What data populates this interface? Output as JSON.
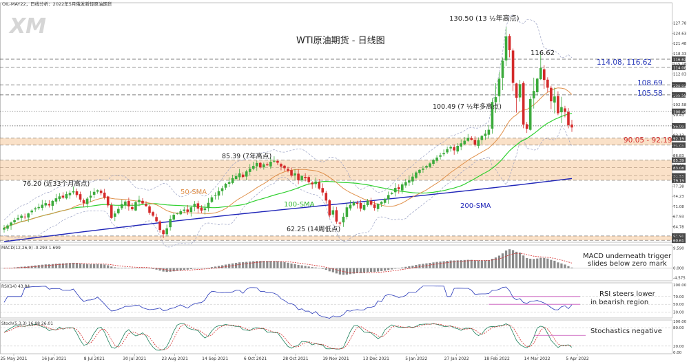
{
  "header": {
    "symbol_line": "OIL-MAY22，日线分析：2022年5月俄发新轻原油期货",
    "logo_text": "XM"
  },
  "chart_data": {
    "type": "candlestick",
    "title": "WTI原油期货 - 日线图",
    "x_axis": {
      "tick_labels": [
        "25 May 2021",
        "16 Jun 2021",
        "8 Jul 2021",
        "30 Jul 2021",
        "23 Aug 2021",
        "14 Sep 2021",
        "6 Oct 2021",
        "28 Oct 2021",
        "19 Nov 2021",
        "13 Dec 2021",
        "5 Jan 2022",
        "27 Jan 2022",
        "18 Feb 2022",
        "14 Mar 2022",
        "5 Apr 2022"
      ]
    },
    "price_axis": {
      "ylim": [
        60.0,
        134.08
      ],
      "ticks": [
        "134.08",
        "127.78",
        "124.63",
        "121.48",
        "118.33",
        "115.18",
        "112.03",
        "108.88",
        "105.73",
        "102.58",
        "99.43",
        "96.28",
        "93.13",
        "89.98",
        "86.83",
        "83.68",
        "80.53",
        "77.38",
        "74.23",
        "71.08",
        "67.93",
        "64.78",
        "61.63"
      ]
    },
    "closes": [
      64.5,
      65.2,
      66.1,
      66.8,
      67.5,
      68.2,
      67.9,
      68.9,
      69.8,
      70.5,
      70.9,
      71.6,
      72.1,
      71.4,
      72.8,
      73.6,
      74.2,
      73.8,
      74.9,
      75.3,
      75.8,
      74.6,
      73.2,
      72.1,
      73.5,
      74.4,
      75.6,
      76.1,
      75.2,
      73.8,
      71.4,
      67.5,
      68.9,
      70.3,
      71.8,
      72.6,
      71.1,
      70.2,
      72.4,
      73.1,
      72.0,
      71.2,
      69.1,
      68.2,
      66.5,
      63.8,
      62.5,
      64.3,
      67.2,
      68.5,
      68.9,
      69.6,
      70.1,
      69.4,
      70.8,
      71.9,
      70.4,
      69.8,
      70.5,
      72.2,
      73.9,
      74.5,
      75.8,
      76.7,
      78.1,
      78.6,
      79.8,
      80.5,
      81.3,
      80.2,
      81.9,
      82.8,
      83.6,
      84.5,
      83.2,
      84.1,
      83.8,
      84.9,
      85.2,
      84.6,
      83.4,
      82.9,
      82.1,
      80.6,
      81.3,
      79.2,
      80.5,
      79.8,
      78.6,
      77.9,
      78.8,
      76.6,
      75.4,
      72.9,
      68.3,
      69.9,
      66.4,
      65.8,
      67.9,
      70.8,
      71.6,
      72.3,
      71.9,
      70.4,
      71.5,
      72.8,
      71.6,
      70.6,
      71.9,
      72.5,
      73.4,
      74.6,
      75.2,
      76.8,
      76.4,
      77.9,
      78.6,
      79.1,
      80.3,
      81.6,
      82.4,
      82.8,
      83.6,
      84.4,
      85.5,
      86.2,
      86.9,
      87.6,
      88.8,
      89.5,
      88.4,
      89.8,
      90.6,
      91.4,
      92.3,
      91.7,
      90.2,
      91.6,
      92.9,
      93.6,
      94.8,
      103.4,
      104.9,
      110.6,
      116.2,
      123.7,
      119.4,
      109.3,
      104.7,
      108.9,
      96.4,
      95.1,
      104.3,
      106.8,
      110.6,
      113.9,
      110.2,
      107.8,
      103.6,
      105.1,
      99.9,
      101.8,
      100.3,
      96.2,
      95.5
    ],
    "sma_50_label": "50-SMA",
    "sma_100_label": "100-SMA",
    "sma_200_label": "200-SMA",
    "series_colors": {
      "candle_up": "#3cab3c",
      "candle_down": "#d42a2a",
      "sma50": "#e0904a",
      "sma100": "#2fd02f",
      "sma200": "#1f25b8",
      "bollinger": "#9aa1c4"
    },
    "horizontal_levels": [
      {
        "value": 116.62,
        "label": "116.62",
        "style": "dashed"
      },
      {
        "value": 114.08,
        "label": "114.08",
        "style": "dashed"
      },
      {
        "value": 108.69,
        "label": "108.69",
        "style": "dashed"
      },
      {
        "value": 105.58,
        "label": "105.58",
        "style": "dashed"
      },
      {
        "value": 100.49,
        "label": "100.49",
        "style": "dotted"
      },
      {
        "value": 96.0,
        "label": "96.00",
        "style": "dotted"
      },
      {
        "value": 92.19,
        "label": "92.19",
        "style": "dashed"
      },
      {
        "value": 90.05,
        "label": "90.05",
        "style": "dashed"
      },
      {
        "value": 85.39,
        "label": "85.39",
        "style": "dashed"
      },
      {
        "value": 83.08,
        "label": "83.08",
        "style": "dashed"
      },
      {
        "value": 80.53,
        "label": "80.53",
        "style": "dashed"
      },
      {
        "value": 79.19,
        "label": "79.19",
        "style": "dashed"
      },
      {
        "value": 61.91,
        "label": "61.91",
        "style": "dashed"
      },
      {
        "value": 60.61,
        "label": "60.61",
        "style": "dashed"
      }
    ],
    "zones": [
      {
        "from": 90.05,
        "to": 92.19,
        "label": "90.05 - 92.19"
      },
      {
        "from": 79.19,
        "to": 85.39
      },
      {
        "from": 60.61,
        "to": 61.91
      }
    ],
    "annotations": {
      "peak": "130.50 (13 ½年高点)",
      "high_116": "116.62",
      "level_100": "100.49 (7 ½年多高点)",
      "level_85": "85.39 (7年高点)",
      "level_76": "76.20 (近33个月高点)",
      "level_62": "62.25 (14周低点)",
      "right_114": "114.08, 116.62",
      "right_108": "108.69",
      "right_105": "105.58"
    },
    "macd": {
      "label": "MACD(12,26,9) -0.293 1.699",
      "ticks": [
        "9.590",
        "0.000",
        "-4.575"
      ],
      "ylim": [
        -6,
        11
      ],
      "note": "MACD underneath trigger slides below zero mark"
    },
    "rsi": {
      "label": "RSI(14) 43.84",
      "ticks": [
        "100.00",
        "70.00",
        "50.00",
        "30.00"
      ],
      "ylim": [
        15,
        105
      ],
      "note": "RSI steers lower in bearish region"
    },
    "stoch": {
      "label": "Stoch(5,3,3) 16.98 26.01",
      "ticks": [
        "100.00",
        "80.00",
        "20.00",
        "0.00"
      ],
      "ylim": [
        -5,
        105
      ],
      "note": "Stochastics negative"
    }
  }
}
